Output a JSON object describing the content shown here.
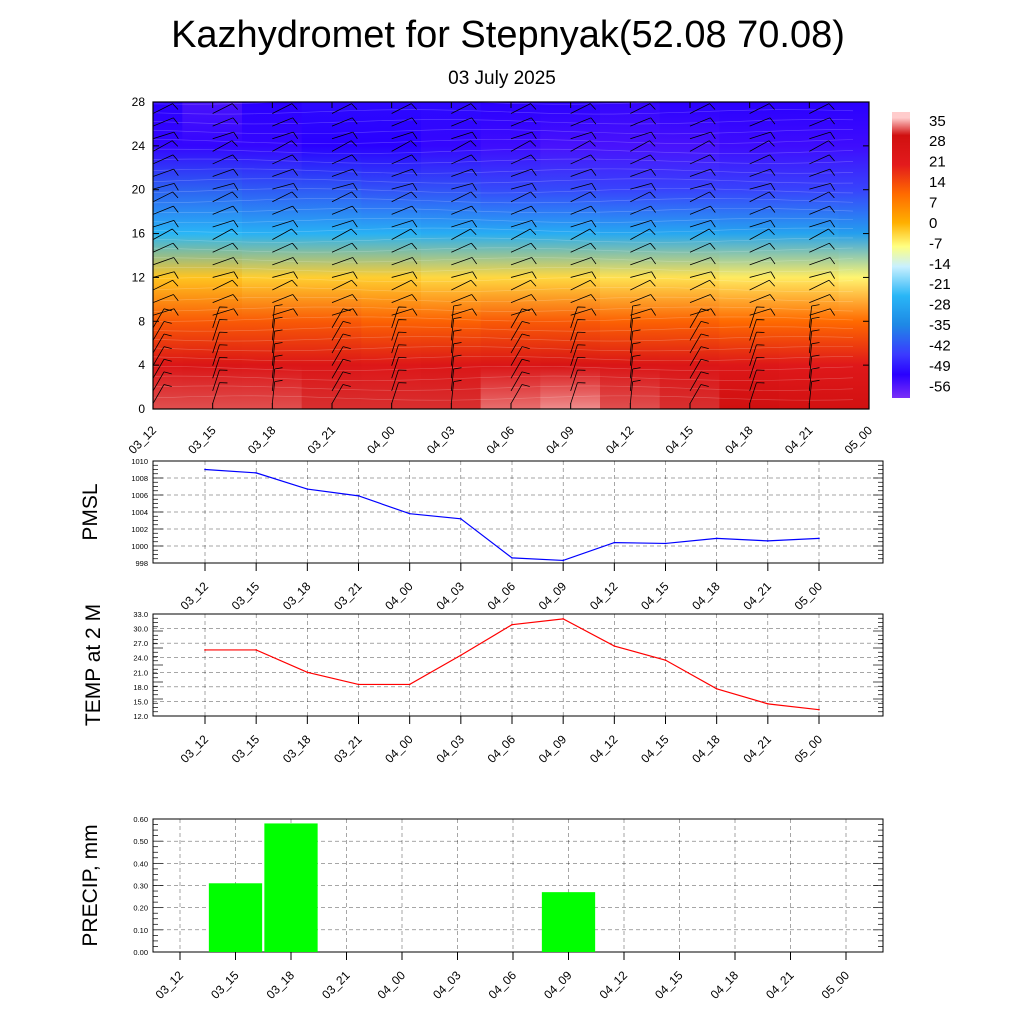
{
  "title": "Kazhydromet for Stepnyak(52.08 70.08)",
  "subtitle": "03 July 2025",
  "time_labels": [
    "03_12",
    "03_15",
    "03_18",
    "03_21",
    "04_00",
    "04_03",
    "04_06",
    "04_09",
    "04_12",
    "04_15",
    "04_18",
    "04_21",
    "05_00"
  ],
  "chart_data": [
    {
      "type": "heatmap",
      "title": "",
      "x_tick_labels": [
        "03_12",
        "03_15",
        "03_18",
        "03_21",
        "04_00",
        "04_03",
        "04_06",
        "04_09",
        "04_12",
        "04_15",
        "04_18",
        "04_21",
        "05_00"
      ],
      "y_ticks": [
        0,
        4,
        8,
        12,
        16,
        20,
        24,
        28
      ],
      "ylim": [
        0,
        28
      ],
      "levels": [
        0,
        4,
        8,
        12,
        16,
        20,
        24,
        28
      ],
      "columns": [
        [
          32,
          24,
          12,
          -2,
          -25,
          -40,
          -53,
          -52
        ],
        [
          32,
          25,
          12,
          -2,
          -25,
          -40,
          -53,
          -55
        ],
        [
          32,
          24,
          12,
          -3,
          -26,
          -41,
          -53,
          -52
        ],
        [
          31,
          24,
          12,
          -3,
          -26,
          -41,
          -52,
          -51
        ],
        [
          31,
          23,
          11,
          -3,
          -26,
          -42,
          -52,
          -51
        ],
        [
          31,
          24,
          11,
          -4,
          -27,
          -42,
          -53,
          -51
        ],
        [
          33,
          25,
          12,
          -4,
          -27,
          -43,
          -54,
          -52
        ],
        [
          34,
          26,
          12,
          -4,
          -27,
          -43,
          -55,
          -52
        ],
        [
          32,
          25,
          11,
          -5,
          -28,
          -44,
          -55,
          -53
        ],
        [
          31,
          24,
          11,
          -5,
          -28,
          -44,
          -55,
          -52
        ],
        [
          30,
          23,
          10,
          -6,
          -29,
          -44,
          -54,
          -52
        ],
        [
          29,
          22,
          10,
          -6,
          -29,
          -44,
          -54,
          -52
        ],
        [
          29,
          22,
          10,
          -7,
          -30,
          -44,
          -54,
          -52
        ]
      ],
      "colorbar_labels": [
        "35",
        "28",
        "21",
        "14",
        "7",
        "0",
        "-7",
        "-14",
        "-21",
        "-28",
        "-35",
        "-42",
        "-49",
        "-56"
      ],
      "colorbar_values": [
        35,
        28,
        21,
        14,
        7,
        0,
        -7,
        -14,
        -21,
        -28,
        -35,
        -42,
        -49,
        -56
      ],
      "palette": [
        "#ffcccc",
        "#e31a1c",
        "#ff6a00",
        "#ffb000",
        "#ffff80",
        "#c8f0ff",
        "#29b6f6",
        "#1e88e5",
        "#3b3bff",
        "#2a00ff",
        "#7b2ff7"
      ],
      "barbs": true
    },
    {
      "type": "line",
      "ylabel": "PMSL",
      "x": [
        "03_12",
        "03_15",
        "03_18",
        "03_21",
        "04_00",
        "04_03",
        "04_06",
        "04_09",
        "04_12",
        "04_15",
        "04_18",
        "04_21",
        "05_00"
      ],
      "values": [
        1009.0,
        1008.6,
        1006.7,
        1005.9,
        1003.8,
        1003.2,
        998.6,
        998.3,
        1000.4,
        1000.3,
        1000.9,
        1000.6,
        1000.9
      ],
      "ylim": [
        998,
        1010
      ],
      "y_ticks": [
        998,
        1000,
        1002,
        1004,
        1006,
        1008,
        1010
      ],
      "y_tick_labels": [
        "998",
        "1000",
        "1002",
        "1004",
        "1006",
        "1008",
        "1010"
      ],
      "color": "#0000ff",
      "grid": true
    },
    {
      "type": "line",
      "ylabel": "TEMP at 2 M",
      "x": [
        "03_12",
        "03_15",
        "03_18",
        "03_21",
        "04_00",
        "04_03",
        "04_06",
        "04_09",
        "04_12",
        "04_15",
        "04_18",
        "04_21",
        "05_00"
      ],
      "values": [
        25.6,
        25.6,
        21.0,
        18.5,
        18.5,
        24.5,
        30.8,
        32.0,
        26.4,
        23.5,
        17.6,
        14.5,
        13.3
      ],
      "ylim": [
        12,
        33
      ],
      "y_ticks": [
        12,
        15,
        18,
        21,
        24,
        27,
        30,
        33
      ],
      "y_tick_labels": [
        "12.0",
        "15.0",
        "18.0",
        "21.0",
        "24.0",
        "27.0",
        "30.0",
        "33.0"
      ],
      "color": "#ff0000",
      "grid": true
    },
    {
      "type": "bar",
      "ylabel": "PRECIP, mm",
      "categories": [
        "03_12",
        "03_15",
        "03_18",
        "03_21",
        "04_00",
        "04_03",
        "04_06",
        "04_09",
        "04_12",
        "04_15",
        "04_18",
        "04_21",
        "05_00"
      ],
      "values": [
        0,
        0.31,
        0.58,
        0,
        0,
        0,
        0,
        0.27,
        0,
        0,
        0,
        0,
        0
      ],
      "ylim": [
        0,
        0.6
      ],
      "y_ticks": [
        0,
        0.1,
        0.2,
        0.3,
        0.4,
        0.5,
        0.6
      ],
      "y_tick_labels": [
        "0.00",
        "0.10",
        "0.20",
        "0.30",
        "0.40",
        "0.50",
        "0.60"
      ],
      "color": "#00ff00",
      "grid": true
    }
  ]
}
